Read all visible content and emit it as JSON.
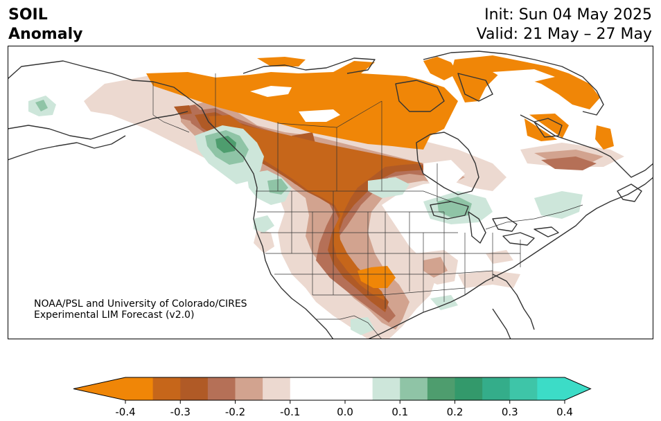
{
  "header": {
    "title_line1": "SOIL",
    "title_line2": "Anomaly",
    "init_line": "Init: Sun 04 May 2025",
    "valid_line": "Valid: 21 May – 27 May"
  },
  "credit": {
    "line1": "NOAA/PSL and University of Colorado/CIRES",
    "line2": "Experimental LIM Forecast (v2.0)"
  },
  "colorbar": {
    "ticks": [
      "-0.4",
      "-0.3",
      "-0.2",
      "-0.1",
      "0.0",
      "0.1",
      "0.2",
      "0.3",
      "0.4"
    ],
    "levels": [
      -0.4,
      -0.35,
      -0.3,
      -0.25,
      -0.2,
      -0.15,
      -0.1,
      -0.05,
      0.05,
      0.1,
      0.15,
      0.2,
      0.25,
      0.3,
      0.35,
      0.4
    ],
    "colors": [
      "#f08607",
      "#dc7410",
      "#c6661a",
      "#b05a26",
      "#b57057",
      "#d2a38f",
      "#ecd9d0",
      "#ffffff",
      "#ffffff",
      "#cde6da",
      "#8fc4a6",
      "#4e9d6e",
      "#33996b",
      "#34ad8a",
      "#3ec5a8",
      "#3cdcc7"
    ],
    "extend_low_color": "#f08607",
    "extend_high_color": "#3cdcc7"
  },
  "map": {
    "region": "North America",
    "land_color": "#ffffff",
    "coastline_color": "#333333",
    "border_color": "#333333"
  }
}
